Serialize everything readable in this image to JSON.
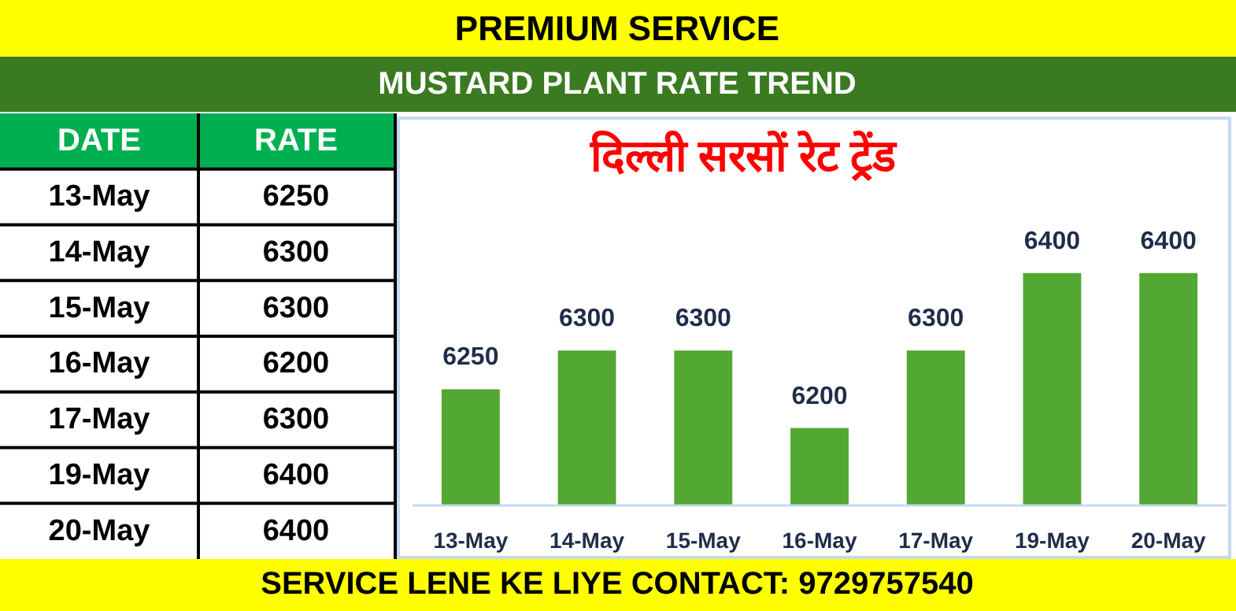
{
  "chart_data": [
    {
      "type": "other",
      "title": "PREMIUM SERVICE",
      "subtitle": "MUSTARD PLANT RATE TREND",
      "annotations": [
        "DATE",
        "RATE",
        "SERVICE LENE KE LIYE CONTACT: 9729757540"
      ],
      "categories": [
        "13-May",
        "14-May",
        "15-May",
        "16-May",
        "17-May",
        "19-May",
        "20-May"
      ],
      "values": [
        6250,
        6300,
        6300,
        6200,
        6300,
        6400,
        6400
      ],
      "data_labels": true
    },
    {
      "type": "bar",
      "title": "दिल्ली सरसों रेट ट्रेंड",
      "categories": [
        "13-May",
        "14-May",
        "15-May",
        "16-May",
        "17-May",
        "19-May",
        "20-May"
      ],
      "values": [
        6250,
        6300,
        6300,
        6200,
        6300,
        6400,
        6400
      ],
      "color": "#52a832",
      "ylim": [
        6100,
        6600
      ],
      "data_labels": true,
      "tick_labels": "x"
    }
  ]
}
